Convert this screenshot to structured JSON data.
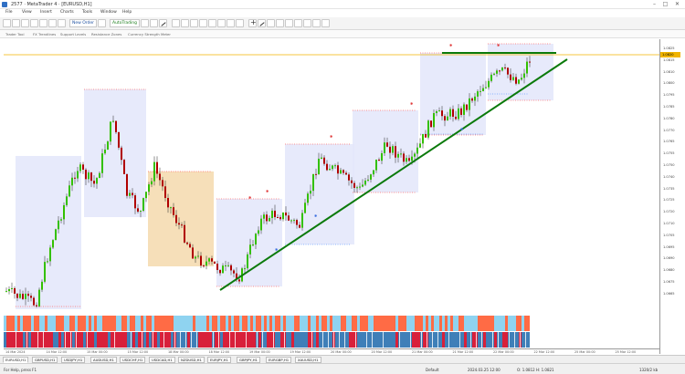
{
  "window": {
    "title": "2577 · MetaTrader 4 · [EURUSD,H1]",
    "minimize": "–",
    "maximize": "□",
    "close": "✕"
  },
  "menu": [
    "File",
    "View",
    "Insert",
    "Charts",
    "Tools",
    "Window",
    "Help"
  ],
  "toolbar": {
    "new_order": "New Order",
    "autotrading": "AutoTrading"
  },
  "indicators": [
    "Trader Tool",
    "FX Trendlines",
    "Support Levels",
    "Resistance Zones",
    "Currency Strength Meter"
  ],
  "price_axis": {
    "current_price": "1.0820",
    "current_color": "#f0b400",
    "ticks": [
      "1.0825",
      "1.0815",
      "1.0810",
      "1.0800",
      "1.0795",
      "1.0785",
      "1.0780",
      "1.0770",
      "1.0765",
      "1.0755",
      "1.0750",
      "1.0740",
      "1.0735",
      "1.0725",
      "1.0720",
      "1.0710",
      "1.0705",
      "1.0695",
      "1.0690",
      "1.0680",
      "1.0675",
      "1.0665"
    ]
  },
  "time_axis": {
    "ticks": [
      "14 Mar 2024",
      "14 Mar 12:00",
      "15 Mar 00:00",
      "15 Mar 12:00",
      "18 Mar 00:00",
      "18 Mar 12:00",
      "19 Mar 00:00",
      "19 Mar 12:00",
      "20 Mar 00:00",
      "20 Mar 12:00",
      "21 Mar 00:00",
      "21 Mar 12:00",
      "22 Mar 00:00",
      "22 Mar 12:00",
      "25 Mar 00:00",
      "25 Mar 12:00"
    ]
  },
  "tabs": [
    "EURUSD,H1",
    "GBPUSD,H1",
    "USDJPY,H1",
    "AUDUSD,H1",
    "USDCHF,H1",
    "USDCAD,H1",
    "NZDUSD,H1",
    "EURJPY,H1",
    "GBPJPY,H1",
    "EURGBP,H1",
    "XAUUSD,H1"
  ],
  "status": {
    "help": "For Help, press F1",
    "profile": "Default",
    "datetime": "2024.03.25 12:00",
    "ohlc": "O: 1.0812  H: 1.0821",
    "connection": "1320/2 kb"
  },
  "colors": {
    "bull": "#33c000",
    "bear": "#b00000",
    "trendline": "#0b7a0b",
    "box": "#e3e6fa",
    "box_orange": "#f5d9ad",
    "strength_a": "#ff6b45",
    "strength_b": "#8fd3f0",
    "strength_c": "#d8203a",
    "strength_d": "#3f7fb8"
  }
}
